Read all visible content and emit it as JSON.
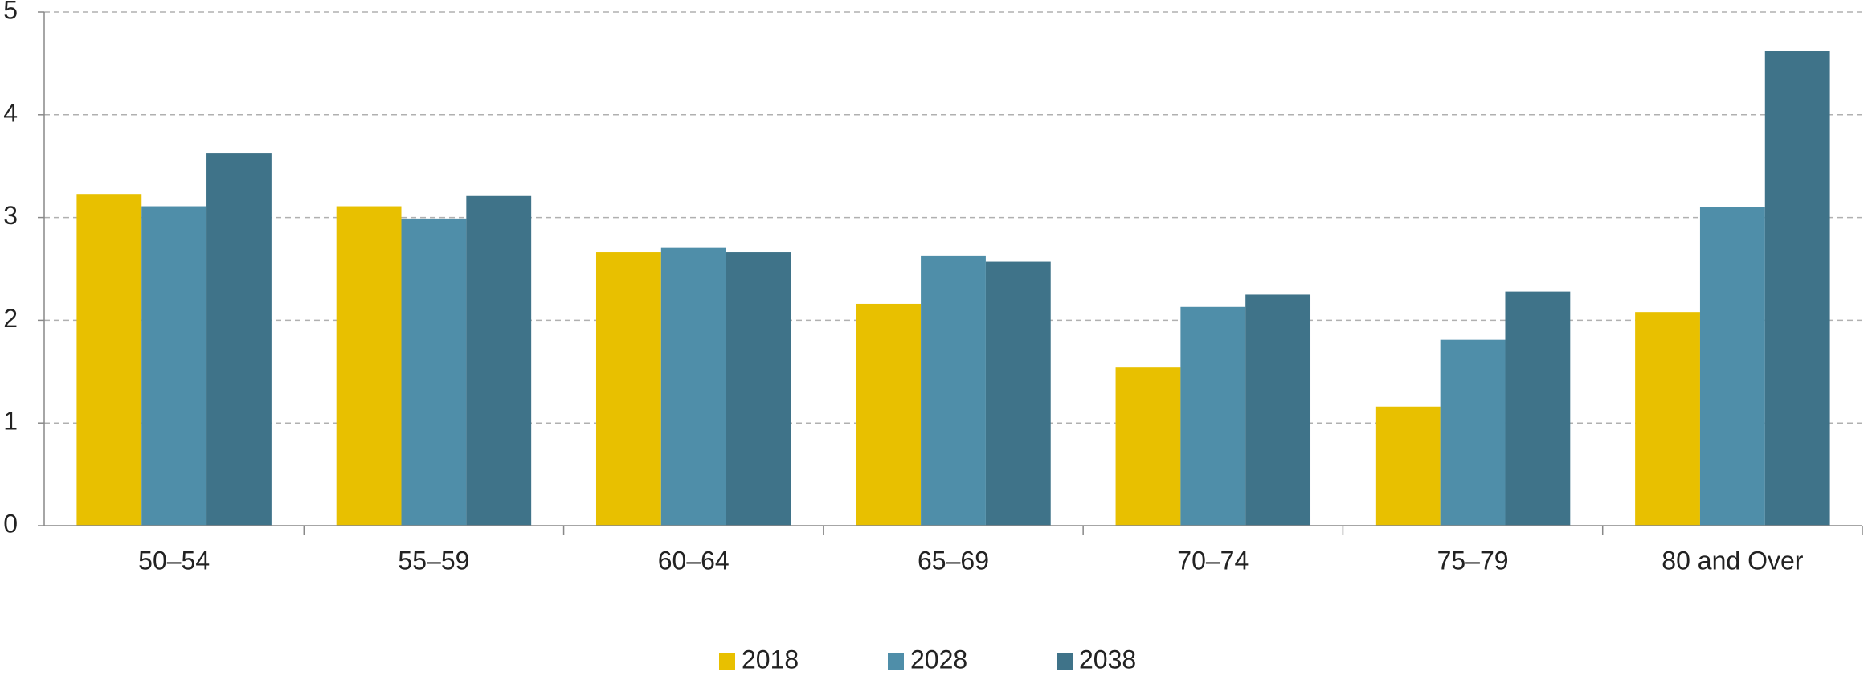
{
  "chart_data": {
    "type": "bar",
    "categories": [
      "50–54",
      "55–59",
      "60–64",
      "65–69",
      "70–74",
      "75–79",
      "80 and Over"
    ],
    "series": [
      {
        "name": "2018",
        "color": "#e8c000",
        "values": [
          3.23,
          3.11,
          2.66,
          2.16,
          1.54,
          1.16,
          2.08
        ]
      },
      {
        "name": "2028",
        "color": "#4f8ea9",
        "values": [
          3.11,
          2.99,
          2.71,
          2.63,
          2.13,
          1.81,
          3.1
        ]
      },
      {
        "name": "2038",
        "color": "#3f7389",
        "values": [
          3.63,
          3.21,
          2.66,
          2.57,
          2.25,
          2.28,
          4.62
        ]
      }
    ],
    "ylim": [
      0,
      5
    ],
    "yticks": [
      0,
      1,
      2,
      3,
      4,
      5
    ],
    "grid": true,
    "legend": "bottom"
  }
}
